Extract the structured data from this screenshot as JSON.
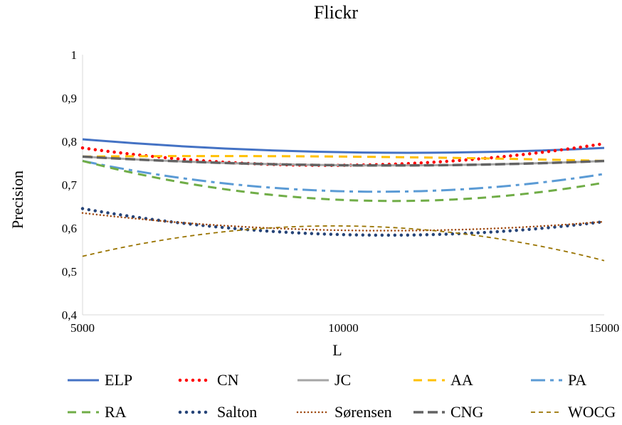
{
  "chart_data": {
    "type": "line",
    "title": "Flickr",
    "xlabel": "L",
    "ylabel": "Precision",
    "x": [
      5000,
      10000,
      15000
    ],
    "xticks": [
      "5000",
      "10000",
      "15000"
    ],
    "xlim": [
      5000,
      15000
    ],
    "ylim": [
      0.4,
      1.0
    ],
    "yticks": [
      "0,4",
      "0,5",
      "0,6",
      "0,7",
      "0,8",
      "0,9",
      "1"
    ],
    "grid": false,
    "legend": "bottom",
    "series": [
      {
        "name": "ELP",
        "values": [
          0.805,
          0.775,
          0.785
        ],
        "color": "#4472C4",
        "style": "solid"
      },
      {
        "name": "CN",
        "values": [
          0.785,
          0.745,
          0.795
        ],
        "color": "#FF0000",
        "style": "dotted"
      },
      {
        "name": "JC",
        "values": [
          0.765,
          0.745,
          0.755
        ],
        "color": "#A5A5A5",
        "style": "solid"
      },
      {
        "name": "AA",
        "values": [
          0.765,
          0.765,
          0.755
        ],
        "color": "#FFC000",
        "style": "dash"
      },
      {
        "name": "PA",
        "values": [
          0.755,
          0.685,
          0.725
        ],
        "color": "#5B9BD5",
        "style": "dashdot"
      },
      {
        "name": "RA",
        "values": [
          0.755,
          0.665,
          0.705
        ],
        "color": "#70AD47",
        "style": "dash"
      },
      {
        "name": "Salton",
        "values": [
          0.645,
          0.585,
          0.615
        ],
        "color": "#264478",
        "style": "dotted"
      },
      {
        "name": "Sørensen",
        "values": [
          0.635,
          0.595,
          0.615
        ],
        "color": "#9E480E",
        "style": "smalldot"
      },
      {
        "name": "CNG",
        "values": [
          0.765,
          0.745,
          0.755
        ],
        "color": "#636363",
        "style": "longdash"
      },
      {
        "name": "WOCG",
        "values": [
          0.535,
          0.605,
          0.525
        ],
        "color": "#997300",
        "style": "smalldash"
      }
    ]
  }
}
